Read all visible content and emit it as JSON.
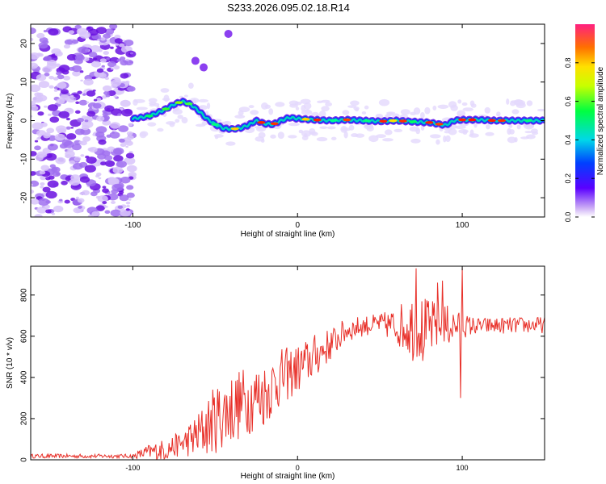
{
  "title": "S233.2026.095.02.18.R14",
  "chart_data": [
    {
      "type": "heatmap",
      "name": "spectrogram",
      "xlabel": "Height of straight line (km)",
      "ylabel": "Frequency (Hz)",
      "xlim": [
        -162,
        150
      ],
      "ylim": [
        -25,
        25
      ],
      "xticks": [
        -100,
        0,
        100
      ],
      "yticks": [
        -20,
        -10,
        0,
        10,
        20
      ],
      "colorbar": {
        "label": "Normalized spectral amplitude",
        "range": [
          0,
          1
        ],
        "ticks": [
          0.0,
          0.2,
          0.4,
          0.6,
          0.8
        ]
      },
      "ridge": [
        {
          "x": -100,
          "f": 0.5
        },
        {
          "x": -95,
          "f": 0.8
        },
        {
          "x": -90,
          "f": 1.2
        },
        {
          "x": -85,
          "f": 2.0
        },
        {
          "x": -80,
          "f": 3.0
        },
        {
          "x": -75,
          "f": 4.2
        },
        {
          "x": -70,
          "f": 5.0
        },
        {
          "x": -65,
          "f": 4.2
        },
        {
          "x": -60,
          "f": 2.5
        },
        {
          "x": -55,
          "f": 0.5
        },
        {
          "x": -50,
          "f": -1.0
        },
        {
          "x": -45,
          "f": -2.0
        },
        {
          "x": -40,
          "f": -2.2
        },
        {
          "x": -35,
          "f": -2.0
        },
        {
          "x": -30,
          "f": -1.2
        },
        {
          "x": -25,
          "f": 0.0
        },
        {
          "x": -20,
          "f": -0.8
        },
        {
          "x": -15,
          "f": -1.0
        },
        {
          "x": -10,
          "f": 0.0
        },
        {
          "x": -5,
          "f": 0.8
        },
        {
          "x": 0,
          "f": 0.5
        },
        {
          "x": 10,
          "f": 0.2
        },
        {
          "x": 20,
          "f": 0.0
        },
        {
          "x": 30,
          "f": 0.2
        },
        {
          "x": 40,
          "f": 0.0
        },
        {
          "x": 50,
          "f": -0.2
        },
        {
          "x": 60,
          "f": 0.0
        },
        {
          "x": 70,
          "f": -0.3
        },
        {
          "x": 80,
          "f": -0.5
        },
        {
          "x": 90,
          "f": -1.2
        },
        {
          "x": 95,
          "f": 0.0
        },
        {
          "x": 100,
          "f": 0.2
        },
        {
          "x": 110,
          "f": 0.2
        },
        {
          "x": 120,
          "f": 0.0
        },
        {
          "x": 130,
          "f": 0.0
        },
        {
          "x": 140,
          "f": 0.0
        },
        {
          "x": 150,
          "f": 0.0
        }
      ],
      "noise_region": [
        -162,
        -100
      ],
      "tone": [
        {
          "x": -42,
          "f": 22.5
        },
        {
          "x": -57,
          "f": 13.8
        },
        {
          "x": -62,
          "f": 15.5
        }
      ]
    },
    {
      "type": "line",
      "name": "snr",
      "xlabel": "Height of straight line (km)",
      "ylabel": "SNR (10 * v/v)",
      "xlim": [
        -162,
        150
      ],
      "ylim": [
        0,
        940
      ],
      "xticks": [
        -100,
        0,
        100
      ],
      "yticks": [
        0,
        200,
        400,
        600,
        800
      ],
      "color": "#e8312a",
      "envelope": [
        {
          "x": -162,
          "base": 18,
          "amp": 10
        },
        {
          "x": -100,
          "base": 18,
          "amp": 10
        },
        {
          "x": -92,
          "base": 35,
          "amp": 35
        },
        {
          "x": -80,
          "base": 50,
          "amp": 55
        },
        {
          "x": -70,
          "base": 80,
          "amp": 60
        },
        {
          "x": -60,
          "base": 120,
          "amp": 120
        },
        {
          "x": -50,
          "base": 200,
          "amp": 170
        },
        {
          "x": -40,
          "base": 250,
          "amp": 180
        },
        {
          "x": -30,
          "base": 290,
          "amp": 170
        },
        {
          "x": -20,
          "base": 320,
          "amp": 160
        },
        {
          "x": -10,
          "base": 400,
          "amp": 140
        },
        {
          "x": 0,
          "base": 440,
          "amp": 120
        },
        {
          "x": 10,
          "base": 500,
          "amp": 110
        },
        {
          "x": 20,
          "base": 560,
          "amp": 80
        },
        {
          "x": 30,
          "base": 630,
          "amp": 60
        },
        {
          "x": 40,
          "base": 650,
          "amp": 50
        },
        {
          "x": 50,
          "base": 660,
          "amp": 50
        },
        {
          "x": 60,
          "base": 650,
          "amp": 90
        },
        {
          "x": 70,
          "base": 650,
          "amp": 170
        },
        {
          "x": 80,
          "base": 640,
          "amp": 140
        },
        {
          "x": 90,
          "base": 650,
          "amp": 110
        },
        {
          "x": 100,
          "base": 650,
          "amp": 60
        },
        {
          "x": 110,
          "base": 650,
          "amp": 40
        },
        {
          "x": 150,
          "base": 655,
          "amp": 40
        }
      ],
      "spikes": [
        {
          "x": 72,
          "y": 930
        },
        {
          "x": 76,
          "y": 480
        },
        {
          "x": 85,
          "y": 860
        },
        {
          "x": 88,
          "y": 870
        },
        {
          "x": 99,
          "y": 300
        },
        {
          "x": 100,
          "y": 930
        }
      ]
    }
  ]
}
